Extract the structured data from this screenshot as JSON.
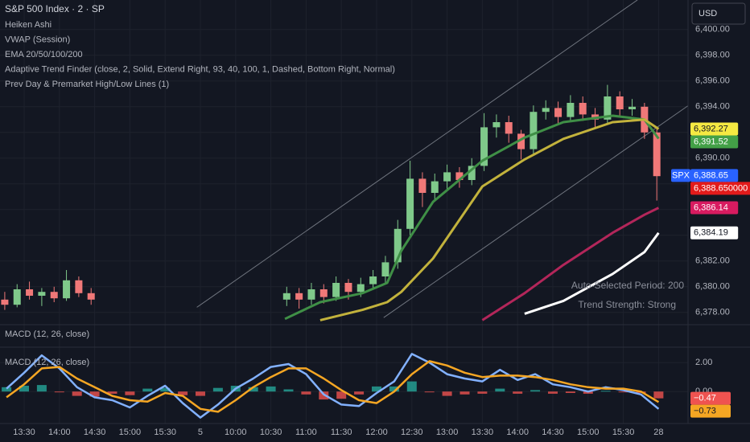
{
  "chart_data": [
    {
      "type": "candlestick",
      "title": "S&P 500 Index · 2 · SP",
      "indicators": [
        "Heiken Ashi",
        "VWAP (Session)",
        "EMA 20/50/100/200",
        "Adaptive Trend Finder (close, 2, Solid, Extend Right, 93, 40, 100, 1, Dashed, Bottom Right, Normal)",
        "Prev Day & Premarket High/Low Lines (1)"
      ],
      "currency": "USD",
      "annotations": [
        "Auto-Selected Period: 200",
        "Trend Strength: Strong"
      ],
      "xlim": [
        -0.685,
        18.836
      ],
      "ylim": [
        6377.3,
        6402.3
      ],
      "yticks": [
        {
          "value": 6378,
          "label": "6,378.00"
        },
        {
          "value": 6380,
          "label": "6,380.00"
        },
        {
          "value": 6382,
          "label": "6,382.00"
        },
        {
          "value": 6384,
          "label": "6,384.00"
        },
        {
          "value": 6386,
          "label": "6,386.00"
        },
        {
          "value": 6388,
          "label": "6,388.00"
        },
        {
          "value": 6390,
          "label": "6,390.00"
        },
        {
          "value": 6392,
          "label": "6,392.00"
        },
        {
          "value": 6394,
          "label": "6,394.00"
        },
        {
          "value": 6396,
          "label": "6,396.00"
        },
        {
          "value": 6398,
          "label": "6,398.00"
        },
        {
          "value": 6400,
          "label": "6,400.00"
        }
      ],
      "grid": true,
      "up_color": "#7fc98a",
      "down_color": "#f07878",
      "x": [
        -0.55,
        -0.2,
        0.15,
        0.5,
        0.85,
        1.2,
        1.55,
        1.9,
        7.45,
        7.8,
        8.15,
        8.5,
        8.85,
        9.2,
        9.55,
        9.9,
        10.25,
        10.6,
        10.95,
        11.3,
        11.65,
        12.0,
        12.35,
        12.7,
        13.05,
        13.4,
        13.75,
        14.1,
        14.45,
        14.8,
        15.15,
        15.5,
        15.85,
        16.2,
        16.55,
        16.9,
        17.25,
        17.6,
        17.95
      ],
      "open": [
        6379.0,
        6378.6,
        6379.8,
        6379.3,
        6379.6,
        6379.1,
        6380.5,
        6379.5,
        6379.0,
        6379.5,
        6379.0,
        6379.8,
        6379.2,
        6380.3,
        6379.6,
        6380.2,
        6380.8,
        6381.9,
        6384.5,
        6388.4,
        6387.3,
        6388.2,
        6388.9,
        6388.3,
        6389.4,
        6392.4,
        6392.8,
        6391.9,
        6390.7,
        6393.6,
        6393.9,
        6393.2,
        6394.3,
        6393.4,
        6393.0,
        6394.8,
        6393.8,
        6394.0,
        6392.0
      ],
      "high": [
        6379.6,
        6380.2,
        6380.4,
        6379.9,
        6380.0,
        6381.3,
        6380.8,
        6379.9,
        6380.0,
        6379.9,
        6380.3,
        6380.2,
        6380.8,
        6380.6,
        6380.7,
        6381.3,
        6382.4,
        6385.2,
        6389.8,
        6388.9,
        6388.8,
        6389.5,
        6389.3,
        6390.0,
        6393.5,
        6393.4,
        6393.3,
        6392.2,
        6394.1,
        6394.5,
        6394.4,
        6394.9,
        6394.8,
        6393.9,
        6395.7,
        6395.2,
        6394.6,
        6394.3,
        6392.3
      ],
      "low": [
        6378.2,
        6378.4,
        6379.0,
        6378.5,
        6378.8,
        6378.9,
        6379.2,
        6378.6,
        6378.5,
        6378.3,
        6378.6,
        6378.7,
        6378.9,
        6379.0,
        6379.2,
        6379.8,
        6380.3,
        6381.4,
        6384.0,
        6386.2,
        6386.8,
        6387.6,
        6387.7,
        6387.9,
        6389.0,
        6391.6,
        6391.2,
        6389.9,
        6390.3,
        6393.0,
        6392.6,
        6392.8,
        6392.9,
        6392.3,
        6392.6,
        6393.2,
        6393.3,
        6391.5,
        6386.7
      ],
      "close": [
        6378.6,
        6379.8,
        6379.3,
        6379.6,
        6379.1,
        6380.5,
        6379.5,
        6379.0,
        6379.5,
        6379.0,
        6379.8,
        6379.2,
        6380.3,
        6379.6,
        6380.2,
        6380.8,
        6381.9,
        6384.5,
        6388.4,
        6387.3,
        6388.2,
        6388.9,
        6388.3,
        6389.4,
        6392.4,
        6392.8,
        6391.9,
        6390.7,
        6393.6,
        6393.9,
        6393.2,
        6394.3,
        6393.4,
        6393.0,
        6394.8,
        6393.8,
        6394.0,
        6392.0,
        6388.6
      ],
      "line_x": [
        7.4,
        8.4,
        9.6,
        10.3,
        10.7,
        11.6,
        13.0,
        14.2,
        15.3,
        16.7,
        17.6,
        18.0
      ],
      "lines": [
        {
          "color": "#3f8f46",
          "values": [
            6377.5,
            6378.8,
            6379.5,
            6380.3,
            6382.8,
            6386.6,
            6389.8,
            6391.6,
            6392.8,
            6393.3,
            6393.0,
            6391.52
          ]
        },
        {
          "color": "#c2b23c",
          "values": [
            null,
            6377.4,
            6378.2,
            6378.8,
            6379.6,
            6382.2,
            6387.8,
            6389.9,
            6391.5,
            6392.8,
            6393.0,
            6392.27
          ]
        },
        {
          "color": "#b3265a",
          "values": [
            null,
            null,
            null,
            null,
            null,
            null,
            6377.4,
            6379.5,
            6381.7,
            6384.2,
            6385.6,
            6386.14
          ]
        },
        {
          "color": "#ffffff",
          "values": [
            null,
            null,
            null,
            null,
            null,
            null,
            null,
            6377.9,
            6378.9,
            6381.0,
            6382.7,
            6384.19
          ]
        }
      ],
      "channel_color": "#70757f",
      "channel": [
        {
          "x": [
            4.9,
            17.4
          ],
          "values": [
            6378.4,
            6402.3
          ]
        },
        {
          "x": [
            10.2,
            18.9
          ],
          "values": [
            6377.6,
            6394.2
          ]
        }
      ],
      "price_labels": [
        {
          "value": 6392.27,
          "label": "6,392.27",
          "color": "#f5e942"
        },
        {
          "value": 6391.52,
          "label": "6,391.52",
          "color": "#43a047"
        },
        {
          "value": 6388.65,
          "label": "6,388.65",
          "tag": "SPX",
          "color": "#2962ff"
        },
        {
          "value": 6388.65,
          "label": "6,388.650000",
          "color": "#e21b1b"
        },
        {
          "value": 6386.14,
          "label": "6,386.14",
          "color": "#d81b60"
        },
        {
          "value": 6384.19,
          "label": "6,384.19",
          "color": "#ffffff"
        }
      ]
    },
    {
      "type": "macd",
      "collapsed_title": "MACD (12, 26, close)",
      "title": "MACD (12, 26, close)",
      "xlim": [
        -0.685,
        18.836
      ],
      "ylim": [
        -2.1,
        2.9
      ],
      "yticks": [
        {
          "value": 0,
          "label": "0.00"
        },
        {
          "value": 2,
          "label": "2.00"
        }
      ],
      "xticks": [
        {
          "value": 0,
          "label": "13:30"
        },
        {
          "value": 1,
          "label": "14:00"
        },
        {
          "value": 2,
          "label": "14:30"
        },
        {
          "value": 3,
          "label": "15:00"
        },
        {
          "value": 4,
          "label": "15:30"
        },
        5,
        {
          "value": 6,
          "label": "10:00"
        },
        {
          "value": 7,
          "label": "10:30"
        },
        {
          "value": 8,
          "label": "11:00"
        },
        {
          "value": 9,
          "label": "11:30"
        },
        {
          "value": 10,
          "label": "12:00"
        },
        {
          "value": 11,
          "label": "12:30"
        },
        {
          "value": 12,
          "label": "13:00"
        },
        {
          "value": 13,
          "label": "13:30"
        },
        {
          "value": 14,
          "label": "14:00"
        },
        {
          "value": 15,
          "label": "14:30"
        },
        {
          "value": 16,
          "label": "15:00"
        },
        {
          "value": 17,
          "label": "15:30"
        },
        {
          "value": 18,
          "label": "28"
        }
      ],
      "x": [
        -0.5,
        0,
        0.5,
        1,
        1.5,
        2,
        2.5,
        3,
        3.5,
        4,
        4.5,
        5,
        5.5,
        6,
        6.5,
        7,
        7.5,
        8,
        8.5,
        9,
        9.5,
        10,
        10.5,
        11,
        11.5,
        12,
        12.5,
        13,
        13.5,
        14,
        14.5,
        15,
        15.5,
        16,
        16.5,
        17,
        17.5,
        18
      ],
      "histogram": {
        "pos_color": "#26a69a",
        "neg_color": "#ef5350",
        "values": [
          0.3,
          0.4,
          0.45,
          -0.05,
          -0.3,
          -0.35,
          -0.15,
          -0.25,
          0.2,
          0.25,
          -0.25,
          -0.3,
          0.25,
          0.4,
          0.3,
          0.35,
          0.15,
          -0.2,
          -0.55,
          -0.5,
          -0.2,
          0.35,
          0.35,
          0.7,
          -0.05,
          -0.3,
          -0.2,
          -0.15,
          0.2,
          -0.15,
          0.1,
          -0.15,
          -0.1,
          -0.15,
          0.05,
          -0.05,
          -0.1,
          -0.47
        ]
      },
      "series": [
        {
          "color": "#82b1ff",
          "values": [
            0.2,
            1.3,
            2.5,
            1.6,
            0.3,
            -0.4,
            -0.6,
            -1.1,
            -0.3,
            0.4,
            -0.8,
            -1.8,
            -0.9,
            0.2,
            0.9,
            1.7,
            1.9,
            1.2,
            -0.2,
            -0.9,
            -1.0,
            -0.1,
            0.7,
            2.6,
            2.0,
            1.2,
            0.9,
            0.7,
            1.5,
            0.8,
            1.2,
            0.5,
            0.3,
            0.0,
            0.3,
            0.1,
            -0.2,
            -1.2
          ]
        },
        {
          "color": "#f5a623",
          "values": [
            -0.4,
            0.5,
            1.6,
            1.7,
            0.9,
            0.3,
            -0.3,
            -0.6,
            -0.7,
            -0.1,
            -0.3,
            -1.2,
            -1.4,
            -0.6,
            0.3,
            1.0,
            1.6,
            1.6,
            0.9,
            0.1,
            -0.6,
            -0.8,
            0.0,
            1.2,
            2.1,
            1.8,
            1.3,
            1.0,
            1.1,
            1.1,
            1.0,
            0.8,
            0.5,
            0.3,
            0.2,
            0.2,
            0.0,
            -0.73
          ]
        }
      ],
      "price_labels": [
        {
          "value": -0.47,
          "label": "−0.47",
          "color": "#ef5350"
        },
        {
          "value": -0.73,
          "label": "−0.73",
          "color": "#f5a623"
        }
      ]
    }
  ]
}
